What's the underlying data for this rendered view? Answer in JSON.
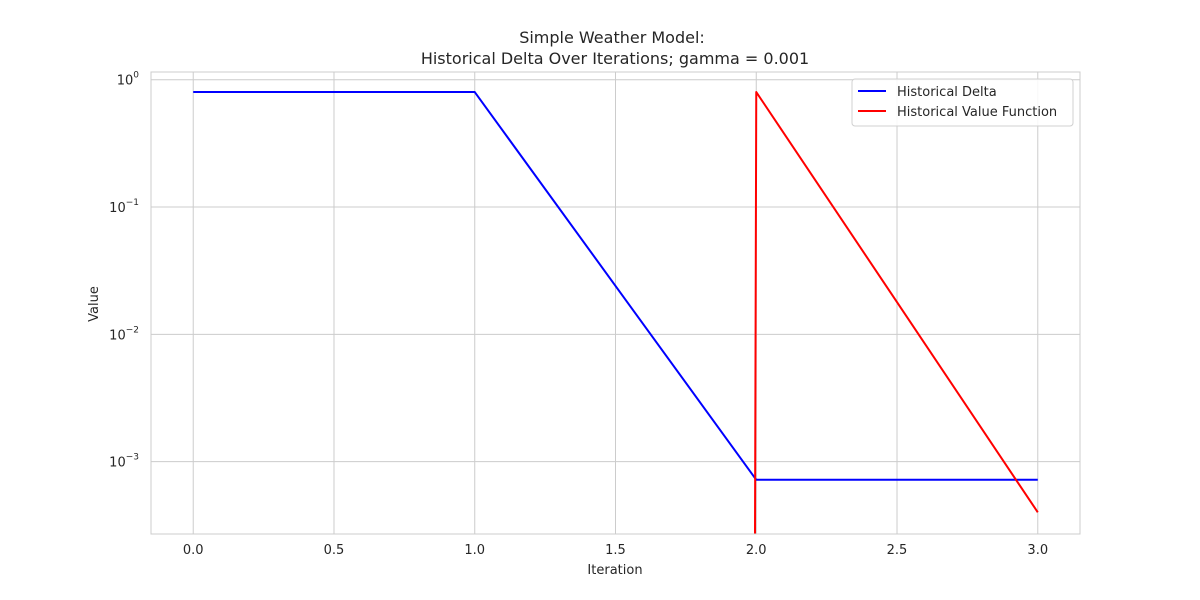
{
  "chart_data": {
    "type": "line",
    "title_lines": [
      "Simple Weather Model:",
      "Historical Delta Over Iterations; gamma = 0.001"
    ],
    "xlabel": "Iteration",
    "ylabel": "Value",
    "xlim": [
      -0.15,
      3.15
    ],
    "ylim": [
      0.00027,
      1.15
    ],
    "yscale": "log",
    "grid": true,
    "legend_position": "top-right",
    "x_ticks": [
      0.0,
      0.5,
      1.0,
      1.5,
      2.0,
      2.5,
      3.0
    ],
    "x_tick_labels": [
      "0.0",
      "0.5",
      "1.0",
      "1.5",
      "2.0",
      "2.5",
      "3.0"
    ],
    "y_ticks": [
      {
        "value": 1,
        "base": "10",
        "exp": "0"
      },
      {
        "value": 0.1,
        "base": "10",
        "exp": "−1"
      },
      {
        "value": 0.01,
        "base": "10",
        "exp": "−2"
      },
      {
        "value": 0.001,
        "base": "10",
        "exp": "−3"
      }
    ],
    "series": [
      {
        "name": "Historical Delta",
        "color": "#0000ff",
        "x": [
          0,
          1,
          2,
          3
        ],
        "values": [
          0.8,
          0.8,
          0.00072,
          0.00072
        ]
      },
      {
        "name": "Historical Value Function",
        "color": "#ff0000",
        "x": [
          1.995,
          2,
          3
        ],
        "values": [
          0.0001,
          0.8,
          0.0004
        ]
      }
    ]
  }
}
